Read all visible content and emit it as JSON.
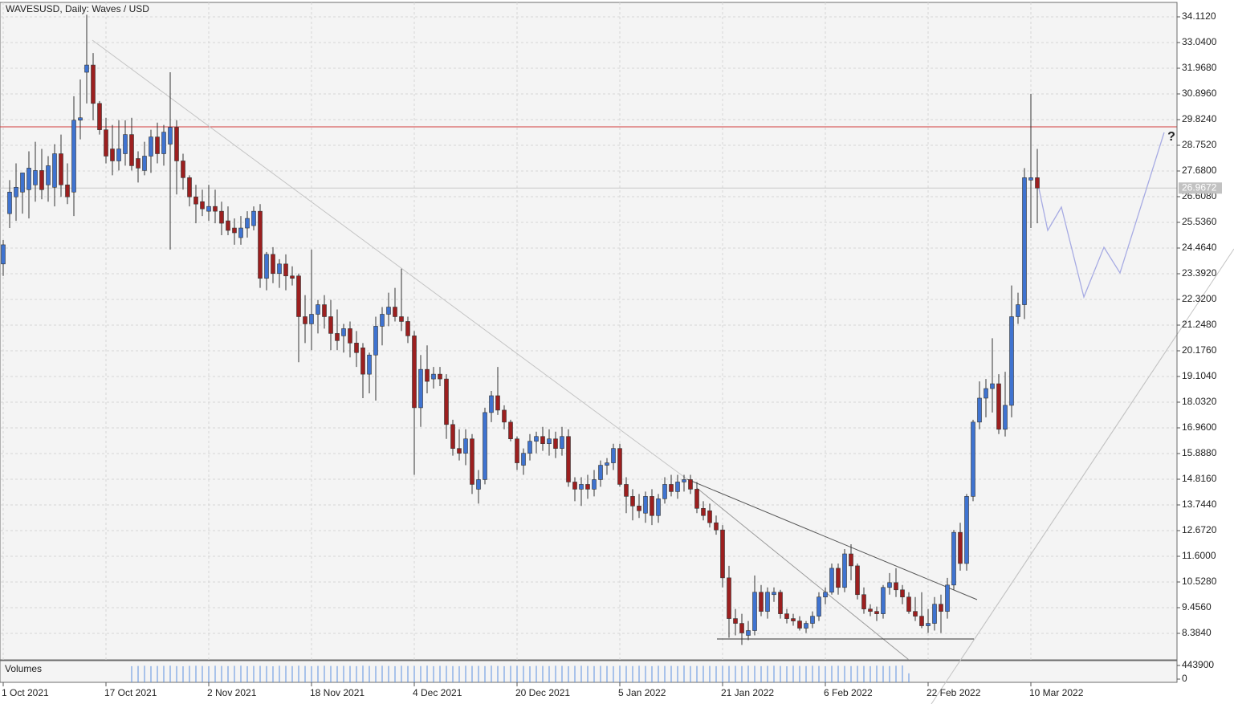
{
  "chart_data": {
    "type": "candlestick",
    "title": "WAVESUSD, Daily:  Waves / USD",
    "annotation": "?",
    "up_color": "#3f73d0",
    "down_color": "#9c1f1f",
    "grid": true,
    "categories": [
      "1 Oct 2021",
      null,
      null,
      null,
      null,
      null,
      null,
      null,
      null,
      null,
      null,
      null,
      null,
      null,
      null,
      null,
      "17 Oct 2021",
      null,
      null,
      null,
      null,
      null,
      null,
      null,
      null,
      null,
      null,
      null,
      null,
      null,
      null,
      null,
      "2 Nov 2021",
      null,
      null,
      null,
      null,
      null,
      null,
      null,
      null,
      null,
      null,
      null,
      null,
      null,
      null,
      null,
      "18 Nov 2021",
      null,
      null,
      null,
      null,
      null,
      null,
      null,
      null,
      null,
      null,
      null,
      null,
      null,
      null,
      null,
      "4 Dec 2021",
      null,
      null,
      null,
      null,
      null,
      null,
      null,
      null,
      null,
      null,
      null,
      null,
      null,
      null,
      null,
      "20 Dec 2021",
      null,
      null,
      null,
      null,
      null,
      null,
      null,
      null,
      null,
      null,
      null,
      null,
      null,
      null,
      null,
      "5 Jan 2022",
      null,
      null,
      null,
      null,
      null,
      null,
      null,
      null,
      null,
      null,
      null,
      null,
      null,
      null,
      null,
      "21 Jan 2022",
      null,
      null,
      null,
      null,
      null,
      null,
      null,
      null,
      null,
      null,
      null,
      null,
      null,
      null,
      null,
      "6 Feb 2022",
      null,
      null,
      null,
      null,
      null,
      null,
      null,
      null,
      null,
      null,
      null,
      null,
      null,
      null,
      null,
      "22 Feb 2022",
      null,
      null,
      null,
      null,
      null,
      null,
      null,
      null,
      null,
      null,
      null,
      null,
      null,
      null,
      null,
      "10 Mar 2022",
      null
    ],
    "open": [
      23.8,
      25.9,
      26.6,
      26.8,
      26.9,
      27.1,
      27.7,
      27.1,
      27.0,
      28.4,
      27.1,
      26.8,
      29.8,
      31.8,
      32.1,
      30.5,
      29.4,
      28.6,
      28.1,
      28.4,
      29.2,
      28.2,
      27.7,
      28.3,
      29.1,
      28.4,
      28.8,
      29.5,
      28.1,
      27.4,
      26.6,
      26.4,
      26.0,
      26.2,
      26.0,
      25.6,
      25.3,
      24.9,
      25.3,
      25.4,
      26.0,
      23.2,
      24.2,
      23.4,
      23.8,
      23.3,
      23.3,
      21.6,
      21.3,
      21.7,
      22.1,
      21.6,
      20.9,
      20.8,
      21.1,
      20.5,
      20.3,
      19.2,
      20.0,
      21.2,
      21.7,
      22.0,
      21.6,
      21.4,
      20.8,
      17.8,
      19.4,
      19.0,
      19.2,
      19.0,
      17.1,
      16.1,
      15.9,
      16.5,
      14.4,
      14.8,
      17.6,
      18.3,
      17.7,
      17.2,
      16.5,
      15.4,
      15.9,
      16.4,
      16.6,
      16.3,
      16.5,
      16.1,
      16.6,
      14.7,
      14.4,
      14.6,
      14.4,
      14.8,
      15.4,
      15.5,
      16.1,
      14.6,
      14.1,
      13.7,
      13.4,
      14.1,
      13.3,
      14.0,
      14.6,
      14.3,
      14.7,
      14.8,
      14.4,
      13.6,
      13.5,
      13.0,
      12.7,
      10.7,
      9.0,
      8.8,
      8.3,
      8.5,
      10.1,
      9.3,
      10.0,
      10.1,
      9.2,
      9.0,
      8.9,
      8.6,
      8.8,
      9.1,
      9.9,
      10.1,
      11.1,
      10.3,
      11.7,
      11.2,
      10.0,
      9.4,
      9.3,
      9.2,
      10.3,
      10.5,
      10.2,
      9.9,
      9.3,
      9.1,
      8.7,
      8.8,
      9.6,
      9.3,
      10.4,
      12.6,
      11.3,
      14.1,
      17.2,
      18.2,
      18.6,
      18.8,
      16.9,
      17.9,
      21.6,
      22.1,
      27.3,
      27.4
    ],
    "high": [
      24.8,
      27.3,
      28.0,
      27.6,
      28.5,
      28.9,
      28.6,
      28.3,
      28.8,
      29.2,
      28.0,
      30.8,
      31.5,
      34.2,
      32.6,
      30.6,
      29.9,
      29.6,
      29.8,
      29.8,
      29.9,
      28.5,
      28.9,
      29.4,
      29.7,
      29.6,
      31.8,
      29.8,
      28.4,
      27.5,
      27.1,
      26.9,
      27.1,
      26.9,
      26.4,
      26.2,
      25.7,
      25.8,
      26.0,
      26.2,
      26.3,
      24.3,
      24.5,
      24.0,
      24.2,
      23.7,
      23.4,
      22.5,
      24.4,
      22.3,
      22.5,
      22.3,
      21.9,
      21.3,
      21.4,
      21.0,
      20.5,
      20.1,
      21.6,
      22.0,
      22.6,
      22.8,
      23.6,
      21.6,
      21.0,
      20.0,
      20.4,
      19.5,
      19.5,
      19.2,
      17.3,
      16.9,
      16.9,
      16.7,
      15.2,
      17.8,
      18.5,
      19.5,
      17.9,
      17.3,
      16.6,
      16.1,
      16.7,
      16.8,
      17.0,
      16.9,
      16.8,
      17.0,
      16.9,
      14.9,
      14.9,
      15.0,
      15.2,
      15.6,
      15.7,
      16.3,
      16.3,
      14.9,
      14.4,
      14.2,
      14.3,
      14.4,
      14.2,
      14.9,
      15.0,
      15.0,
      15.0,
      15.0,
      14.7,
      13.9,
      13.8,
      13.3,
      12.9,
      11.2,
      9.4,
      9.2,
      8.9,
      10.8,
      10.4,
      10.3,
      10.3,
      10.2,
      9.4,
      9.2,
      9.1,
      8.9,
      9.3,
      10.1,
      10.3,
      11.3,
      11.3,
      11.9,
      12.1,
      11.3,
      10.3,
      9.6,
      9.5,
      10.4,
      10.9,
      11.1,
      10.4,
      10.1,
      9.9,
      10.1,
      9.4,
      9.9,
      10.0,
      10.7,
      12.7,
      13.0,
      14.2,
      17.3,
      18.9,
      19.0,
      20.7,
      19.2,
      19.3,
      22.9,
      22.6,
      27.8,
      30.9,
      28.6
    ],
    "low": [
      23.3,
      25.3,
      25.6,
      25.9,
      25.7,
      26.4,
      26.5,
      26.4,
      26.2,
      26.6,
      26.3,
      25.8,
      29.0,
      30.5,
      29.8,
      29.2,
      28.0,
      27.5,
      27.7,
      27.9,
      27.7,
      27.2,
      27.5,
      27.6,
      28.0,
      27.9,
      24.4,
      26.7,
      26.9,
      26.2,
      25.5,
      25.8,
      25.6,
      25.5,
      25.0,
      25.0,
      24.6,
      24.6,
      24.9,
      25.2,
      22.8,
      22.7,
      23.0,
      22.8,
      22.7,
      22.9,
      19.7,
      20.5,
      20.2,
      20.9,
      21.1,
      20.2,
      20.2,
      20.1,
      19.9,
      19.5,
      18.2,
      18.4,
      18.1,
      20.4,
      21.2,
      21.4,
      21.0,
      20.5,
      15.0,
      17.0,
      18.4,
      18.6,
      18.7,
      16.5,
      15.8,
      15.6,
      15.4,
      14.2,
      13.8,
      14.6,
      17.2,
      17.5,
      16.9,
      16.4,
      15.2,
      15.0,
      15.6,
      15.9,
      16.0,
      15.8,
      15.7,
      15.8,
      14.5,
      13.9,
      13.7,
      14.0,
      14.1,
      14.5,
      15.0,
      15.2,
      14.5,
      13.4,
      13.1,
      13.2,
      13.0,
      12.9,
      13.0,
      13.8,
      14.1,
      14.0,
      14.3,
      14.2,
      13.4,
      13.1,
      12.8,
      12.5,
      10.3,
      8.2,
      8.3,
      7.9,
      8.1,
      8.3,
      9.1,
      9.0,
      9.7,
      9.0,
      8.8,
      8.7,
      8.5,
      8.4,
      8.6,
      8.9,
      9.6,
      10.0,
      10.0,
      10.1,
      10.6,
      9.8,
      9.2,
      9.1,
      8.9,
      9.0,
      10.0,
      9.9,
      9.6,
      9.2,
      8.9,
      8.6,
      8.4,
      8.5,
      8.4,
      9.0,
      10.2,
      11.0,
      11.0,
      13.9,
      16.9,
      17.4,
      17.6,
      16.7,
      16.6,
      17.4,
      21.3,
      21.5,
      25.3,
      25.5
    ],
    "close": [
      24.6,
      26.8,
      27.0,
      27.6,
      27.8,
      27.7,
      26.9,
      27.9,
      28.4,
      27.1,
      26.6,
      29.8,
      29.9,
      32.1,
      30.5,
      29.4,
      28.3,
      28.1,
      28.6,
      29.2,
      27.9,
      27.8,
      28.3,
      29.1,
      28.4,
      29.3,
      29.5,
      28.1,
      27.4,
      26.6,
      26.3,
      26.1,
      26.2,
      26.0,
      25.5,
      25.2,
      25.1,
      25.3,
      25.7,
      26.0,
      23.2,
      24.2,
      23.4,
      23.8,
      23.3,
      23.2,
      21.6,
      21.3,
      21.7,
      22.1,
      21.6,
      20.9,
      20.6,
      21.1,
      20.5,
      20.1,
      19.2,
      20.0,
      21.2,
      21.7,
      22.0,
      21.6,
      21.4,
      20.8,
      17.8,
      19.4,
      18.9,
      19.2,
      19.0,
      17.1,
      16.1,
      15.9,
      16.5,
      14.6,
      14.8,
      17.6,
      18.3,
      17.7,
      17.2,
      16.5,
      15.5,
      15.9,
      16.4,
      16.6,
      16.3,
      16.5,
      16.1,
      16.6,
      14.7,
      14.4,
      14.6,
      14.4,
      14.8,
      15.4,
      15.5,
      16.1,
      14.6,
      14.1,
      13.7,
      13.5,
      14.1,
      13.3,
      14.0,
      14.6,
      14.3,
      14.7,
      14.8,
      14.4,
      13.6,
      13.3,
      13.0,
      12.7,
      10.7,
      9.0,
      8.8,
      8.4,
      8.5,
      10.1,
      9.3,
      10.1,
      10.1,
      9.2,
      9.0,
      8.9,
      8.6,
      8.8,
      9.1,
      9.9,
      10.1,
      11.1,
      10.3,
      11.7,
      11.2,
      10.0,
      9.4,
      9.3,
      9.2,
      10.3,
      10.5,
      10.2,
      9.9,
      9.3,
      9.1,
      8.7,
      8.8,
      9.6,
      9.3,
      10.4,
      12.6,
      11.3,
      14.1,
      17.2,
      18.2,
      18.6,
      18.8,
      16.9,
      17.9,
      21.6,
      22.1,
      27.4,
      27.4,
      26.9672
    ],
    "ylim": [
      7.278,
      34.715
    ],
    "yticks": [
      {
        "value": 34.112,
        "label": "34.1120"
      },
      {
        "value": 33.04,
        "label": "33.0400"
      },
      {
        "value": 31.968,
        "label": "31.9680"
      },
      {
        "value": 30.896,
        "label": "30.8960"
      },
      {
        "value": 29.824,
        "label": "29.8240"
      },
      {
        "value": 28.752,
        "label": "28.7520"
      },
      {
        "value": 27.68,
        "label": "27.6800"
      },
      {
        "value": 26.608,
        "label": "26.6080"
      },
      {
        "value": 25.536,
        "label": "25.5360"
      },
      {
        "value": 24.464,
        "label": "24.4640"
      },
      {
        "value": 23.392,
        "label": "23.3920"
      },
      {
        "value": 22.32,
        "label": "22.3200"
      },
      {
        "value": 21.248,
        "label": "21.2480"
      },
      {
        "value": 20.176,
        "label": "20.1760"
      },
      {
        "value": 19.104,
        "label": "19.1040"
      },
      {
        "value": 18.032,
        "label": "18.0320"
      },
      {
        "value": 16.96,
        "label": "16.9600"
      },
      {
        "value": 15.888,
        "label": "15.8880"
      },
      {
        "value": 14.816,
        "label": "14.8160"
      },
      {
        "value": 13.744,
        "label": "13.7440"
      },
      {
        "value": 12.672,
        "label": "12.6720"
      },
      {
        "value": 11.6,
        "label": "11.6000"
      },
      {
        "value": 10.528,
        "label": "10.5280"
      },
      {
        "value": 9.456,
        "label": "9.4560"
      },
      {
        "value": 8.384,
        "label": "8.3840"
      }
    ],
    "volume": {
      "name": "Volumes",
      "color": "#5b8fe0",
      "ylim": [
        0,
        600000
      ],
      "yticks": [
        443900,
        0
      ],
      "values": [
        null,
        null,
        null,
        null,
        null,
        null,
        null,
        null,
        null,
        null,
        null,
        null,
        null,
        null,
        null,
        null,
        null,
        null,
        null,
        null,
        421300,
        428900,
        433100,
        419800,
        426400,
        431700,
        438200,
        424600,
        417900,
        429300,
        432800,
        426100,
        420500,
        435400,
        428700,
        423300,
        430900,
        437100,
        422600,
        427800,
        431200,
        425400,
        418700,
        433900,
        429600,
        424100,
        436300,
        428200,
        421900,
        430400,
        434700,
        427300,
        422800,
        431500,
        426900,
        419600,
        435800,
        429100,
        423700,
        432600,
        428400,
        421100,
        433300,
        426700,
        430800,
        424900,
        437600,
        422300,
        429900,
        431900,
        425700,
        420300,
        434100,
        427600,
        431300,
        423900,
        436700,
        428800,
        422100,
        430100,
        433600,
        426300,
        419300,
        432300,
        428100,
        424300,
        435100,
        429400,
        421600,
        430600,
        434900,
        427100,
        423100,
        431100,
        426500,
        420100,
        436100,
        428500,
        422900,
        433100,
        429200,
        421400,
        432900,
        427300,
        430300,
        425100,
        437900,
        423500,
        428300,
        431600,
        426100,
        420800,
        434500,
        427900,
        431400,
        424600,
        436900,
        429700,
        422400,
        430900,
        433400,
        426800,
        419100,
        432700,
        428900,
        424400,
        435500,
        429100,
        421300,
        430200,
        434300,
        427500,
        423400,
        431800,
        426200,
        420600,
        436500,
        428100,
        422700,
        433800,
        443900,
        188795
      ]
    }
  }
}
